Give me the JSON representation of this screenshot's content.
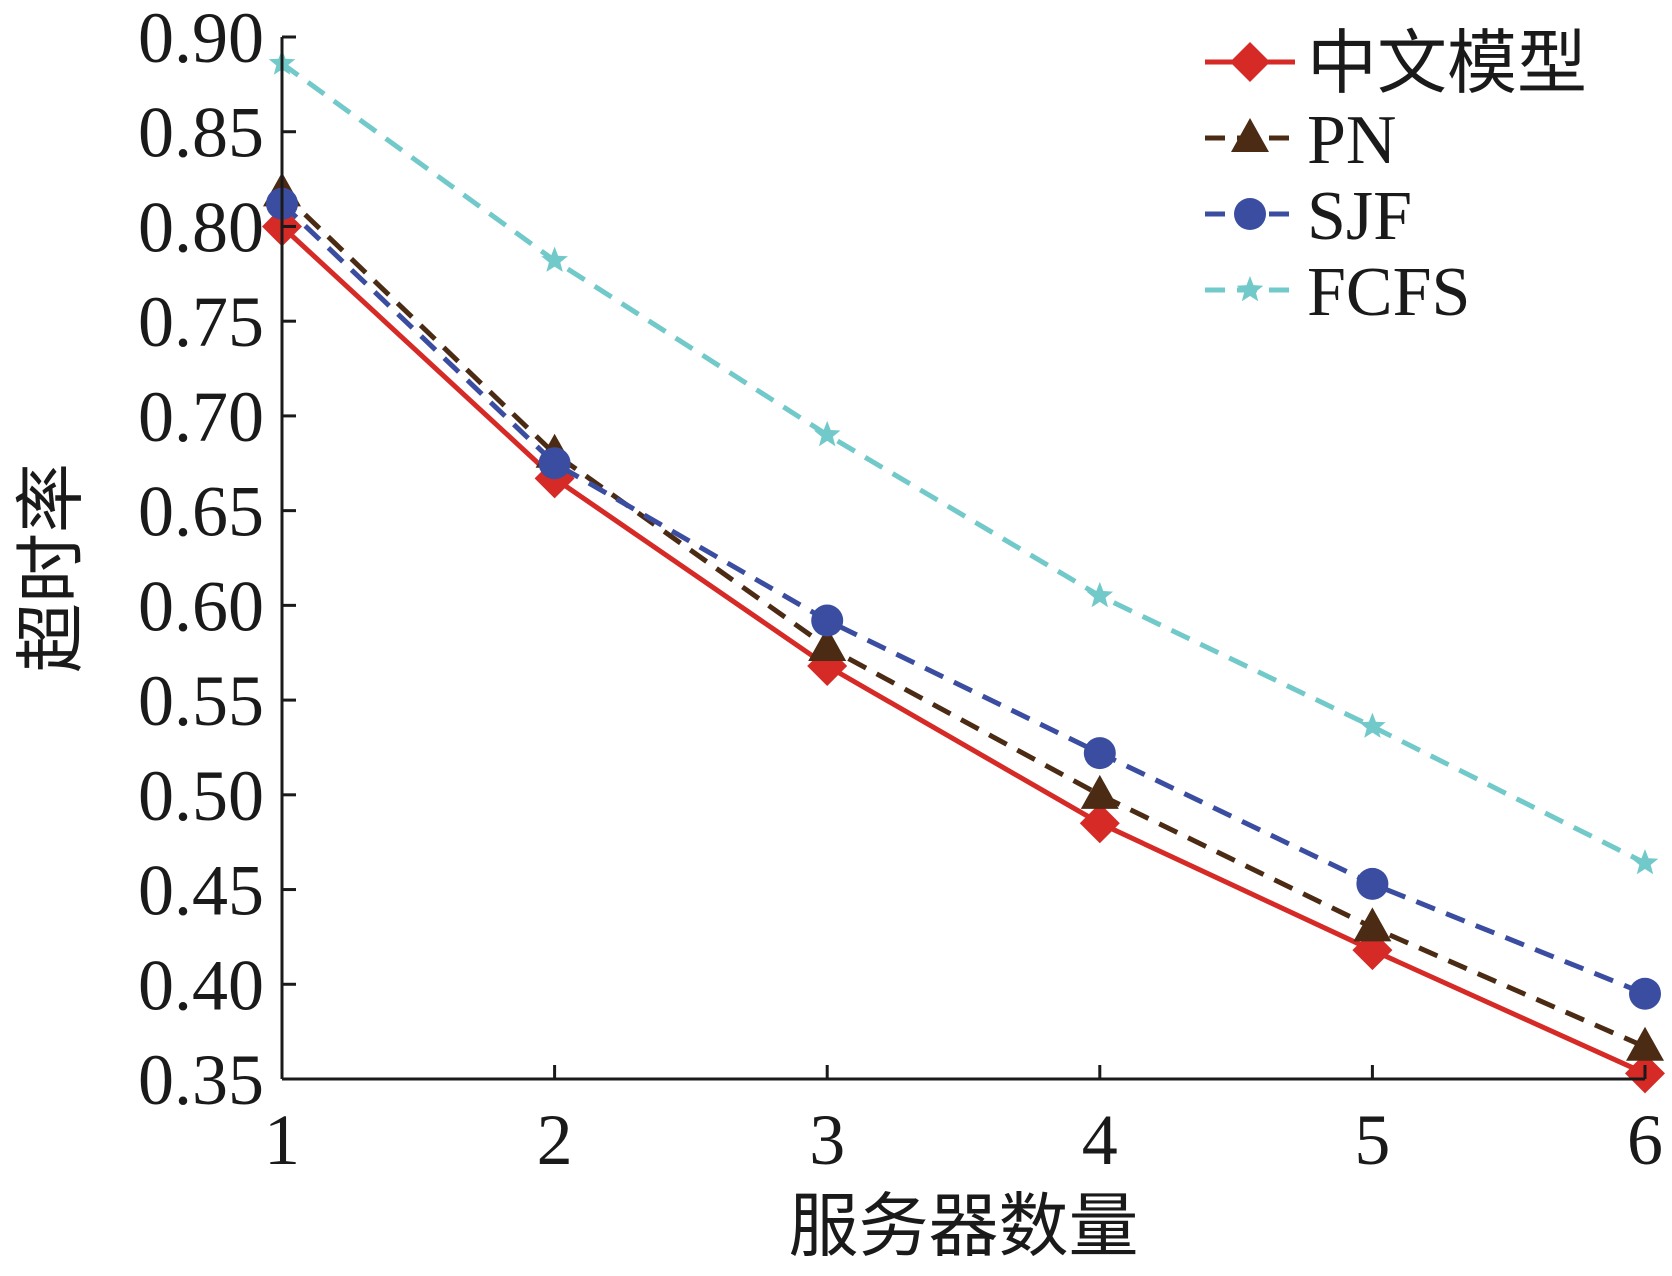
{
  "chart_data": {
    "type": "line",
    "title": "",
    "xlabel": "服务器数量",
    "ylabel": "超时率",
    "x": [
      1,
      2,
      3,
      4,
      5,
      6
    ],
    "x_tick_labels": [
      "1",
      "2",
      "3",
      "4",
      "5",
      "6"
    ],
    "ylim": [
      0.35,
      0.9
    ],
    "y_tick_labels": [
      "0.90",
      "0.85",
      "0.80",
      "0.75",
      "0.70",
      "0.65",
      "0.60",
      "0.55",
      "0.50",
      "0.45",
      "0.40",
      "0.35"
    ],
    "grid": false,
    "legend_position": "top-right",
    "series": [
      {
        "name": "中文模型",
        "values": [
          0.8,
          0.667,
          0.568,
          0.485,
          0.418,
          0.353
        ],
        "color": "#d62a26",
        "dash": "solid",
        "marker": "diamond"
      },
      {
        "name": "PN",
        "values": [
          0.818,
          0.68,
          0.578,
          0.5,
          0.43,
          0.367
        ],
        "color": "#4b2b14",
        "dash": "dashed",
        "marker": "triangle"
      },
      {
        "name": "SJF",
        "values": [
          0.812,
          0.675,
          0.592,
          0.522,
          0.453,
          0.395
        ],
        "color": "#3a4da0",
        "dash": "dashed",
        "marker": "circle"
      },
      {
        "name": "FCFS",
        "values": [
          0.886,
          0.782,
          0.69,
          0.605,
          0.536,
          0.464
        ],
        "color": "#72c9c9",
        "dash": "dashed",
        "marker": "star"
      }
    ]
  }
}
